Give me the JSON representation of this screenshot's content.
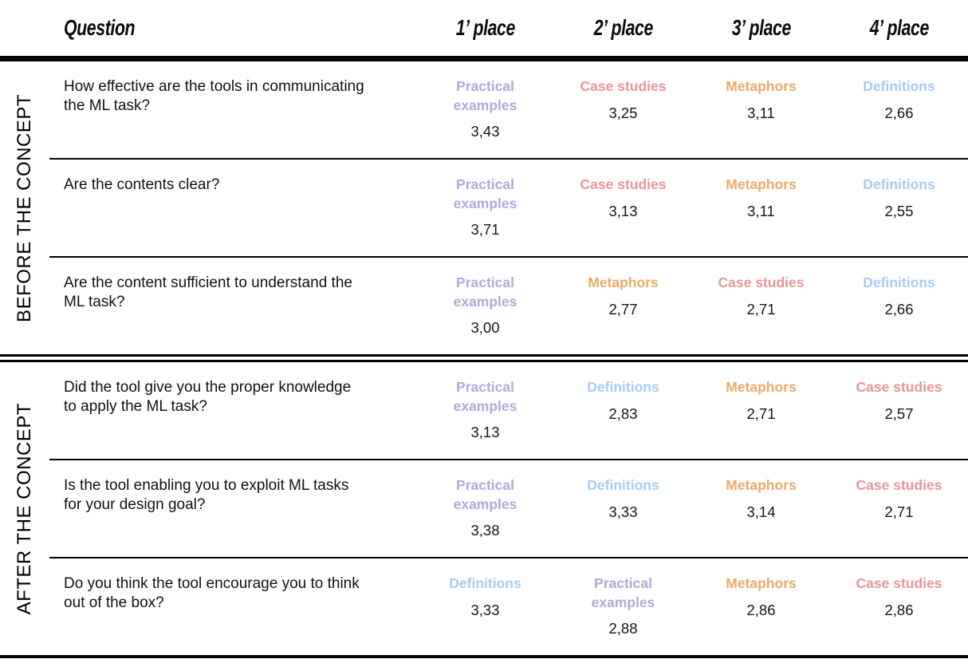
{
  "table": {
    "headers": {
      "question": "Question",
      "places": [
        "1’ place",
        "2’ place",
        "3’ place",
        "4’ place"
      ]
    },
    "colors": {
      "Practical examples": "#b4a6da",
      "Case studies": "#e9959a",
      "Metaphors": "#eaa966",
      "Definitions": "#a9cbf3"
    },
    "sections": [
      {
        "label": "BEFORE THE CONCEPT",
        "rows": [
          {
            "question": "How effective are the tools in communicating the ML task?",
            "cells": [
              {
                "tool": "Practical examples",
                "value": "3,43"
              },
              {
                "tool": "Case studies",
                "value": "3,25"
              },
              {
                "tool": "Metaphors",
                "value": "3,11"
              },
              {
                "tool": "Definitions",
                "value": "2,66"
              }
            ]
          },
          {
            "question": "Are the contents clear?",
            "cells": [
              {
                "tool": "Practical examples",
                "value": "3,71"
              },
              {
                "tool": "Case studies",
                "value": "3,13"
              },
              {
                "tool": "Metaphors",
                "value": "3,11"
              },
              {
                "tool": "Definitions",
                "value": "2,55"
              }
            ]
          },
          {
            "question": "Are the content sufficient to understand the ML task?",
            "cells": [
              {
                "tool": "Practical examples",
                "value": "3,00"
              },
              {
                "tool": "Metaphors",
                "value": "2,77"
              },
              {
                "tool": "Case studies",
                "value": "2,71"
              },
              {
                "tool": "Definitions",
                "value": "2,66"
              }
            ]
          }
        ]
      },
      {
        "label": "AFTER THE CONCEPT",
        "rows": [
          {
            "question": "Did the tool give you the proper knowledge to apply the ML task?",
            "cells": [
              {
                "tool": "Practical examples",
                "value": "3,13"
              },
              {
                "tool": "Definitions",
                "value": "2,83"
              },
              {
                "tool": "Metaphors",
                "value": "2,71"
              },
              {
                "tool": "Case studies",
                "value": "2,57"
              }
            ]
          },
          {
            "question": "Is the tool enabling you to exploit ML tasks for your design goal?",
            "cells": [
              {
                "tool": "Practical examples",
                "value": "3,38"
              },
              {
                "tool": "Definitions",
                "value": "3,33"
              },
              {
                "tool": "Metaphors",
                "value": "3,14"
              },
              {
                "tool": "Case studies",
                "value": "2,71"
              }
            ]
          },
          {
            "question": "Do you think the tool encourage you to think out of the box?",
            "cells": [
              {
                "tool": "Definitions",
                "value": "3,33"
              },
              {
                "tool": "Practical examples",
                "value": "2,88"
              },
              {
                "tool": "Metaphors",
                "value": "2,86"
              },
              {
                "tool": "Case studies",
                "value": "2,86"
              }
            ]
          }
        ]
      }
    ]
  }
}
